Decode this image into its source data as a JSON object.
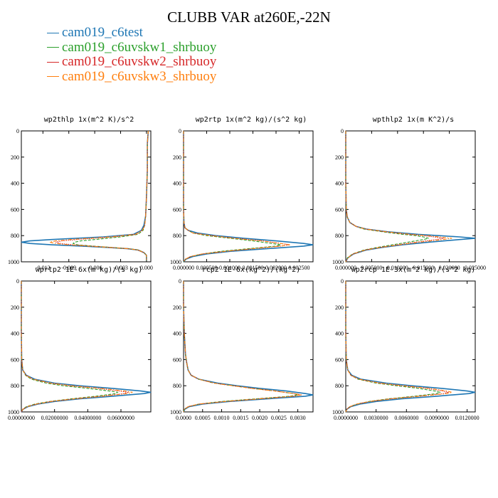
{
  "figure": {
    "title": "CLUBB VAR at260E,-22N"
  },
  "legend": [
    {
      "name": "cam019_c6test",
      "color": "#1f77b4",
      "dash": "solid"
    },
    {
      "name": "cam019_c6uvskw1_shrbuoy",
      "color": "#2ca02c",
      "dash": "dashed"
    },
    {
      "name": "cam019_c6uvskw2_shrbuoy",
      "color": "#d62728",
      "dash": "dotted"
    },
    {
      "name": "cam019_c6uvskw3_shrbuoy",
      "color": "#ff7f0e",
      "dash": "dashdot"
    }
  ],
  "chart_data": [
    {
      "type": "line",
      "title": "wp2thlp  1x(m^2 K)/s^2",
      "xlim": [
        -0.0145,
        0.0005
      ],
      "ylim": [
        1000,
        0
      ],
      "y_ticks": [
        0,
        200,
        400,
        600,
        800,
        1000
      ],
      "x_ticks": [
        -0.012,
        -0.009,
        -0.006,
        -0.003,
        0.0
      ],
      "x_tick_labels": [
        "-0.012",
        "-0.009",
        "-0.006",
        "-0.003",
        "0.000"
      ],
      "y": [
        0,
        100,
        300,
        500,
        650,
        720,
        760,
        790,
        810,
        830,
        840,
        850,
        860,
        870,
        880,
        890,
        900,
        910,
        930,
        950,
        970,
        990
      ],
      "series": [
        {
          "name": "cam019_c6test",
          "values": [
            0.0002,
            0.0001,
            0.0001,
            0.0,
            -0.0001,
            -0.0003,
            -0.0006,
            -0.0015,
            -0.005,
            -0.011,
            -0.0135,
            -0.0145,
            -0.0135,
            -0.011,
            -0.0075,
            -0.0045,
            -0.0022,
            -0.001,
            -0.0003,
            0.0,
            0.0,
            0.0
          ]
        },
        {
          "name": "cam019_c6uvskw1_shrbuoy",
          "values": [
            0.0002,
            0.0001,
            0.0001,
            0.0,
            -0.0001,
            -0.0002,
            -0.0004,
            -0.001,
            -0.003,
            -0.006,
            -0.0076,
            -0.0083,
            -0.0085,
            -0.008,
            -0.0062,
            -0.004,
            -0.002,
            -0.0009,
            -0.0003,
            0.0,
            0.0,
            0.0
          ]
        },
        {
          "name": "cam019_c6uvskw2_shrbuoy",
          "values": [
            0.0002,
            0.0001,
            0.0001,
            0.0,
            -0.0001,
            -0.0002,
            -0.0005,
            -0.0012,
            -0.0038,
            -0.008,
            -0.0098,
            -0.0105,
            -0.01,
            -0.0085,
            -0.0065,
            -0.0042,
            -0.0021,
            -0.001,
            -0.0003,
            0.0,
            0.0,
            0.0
          ]
        },
        {
          "name": "cam019_c6uvskw3_shrbuoy",
          "values": [
            0.0002,
            0.0001,
            0.0001,
            0.0,
            -0.0001,
            -0.0002,
            -0.0005,
            -0.0013,
            -0.0042,
            -0.0088,
            -0.0105,
            -0.0112,
            -0.0106,
            -0.009,
            -0.0068,
            -0.0043,
            -0.0021,
            -0.001,
            -0.0003,
            0.0,
            0.0,
            0.0
          ]
        }
      ]
    },
    {
      "type": "line",
      "title": "wp2rtp  1x(m^2 kg)/(s^2 kg)",
      "xlim": [
        0.0,
        0.0028
      ],
      "ylim": [
        1000,
        0
      ],
      "y_ticks": [
        0,
        200,
        400,
        600,
        800,
        1000
      ],
      "x_ticks": [
        0.0,
        0.0005,
        0.001,
        0.0015,
        0.002,
        0.0025
      ],
      "x_tick_labels": [
        "0.000000",
        "0.000500",
        "0.001000",
        "0.001500",
        "0.002000",
        "0.002500"
      ],
      "y": [
        0,
        300,
        600,
        700,
        740,
        760,
        780,
        800,
        820,
        840,
        860,
        870,
        880,
        900,
        920,
        940,
        960,
        980,
        1000
      ],
      "series": [
        {
          "name": "cam019_c6test",
          "values": [
            0.0,
            0.0,
            0.0,
            1e-05,
            3e-05,
            0.0001,
            0.0003,
            0.0007,
            0.0013,
            0.002,
            0.0026,
            0.0028,
            0.0026,
            0.0018,
            0.001,
            0.0005,
            0.0002,
            5e-05,
            0.0
          ]
        },
        {
          "name": "cam019_c6uvskw1_shrbuoy",
          "values": [
            0.0,
            0.0,
            0.0,
            1e-05,
            3e-05,
            0.0001,
            0.0002,
            0.0005,
            0.001,
            0.0015,
            0.0019,
            0.0021,
            0.002,
            0.0014,
            0.0008,
            0.0004,
            0.00015,
            4e-05,
            0.0
          ]
        },
        {
          "name": "cam019_c6uvskw2_shrbuoy",
          "values": [
            0.0,
            0.0,
            0.0,
            1e-05,
            3e-05,
            0.0001,
            0.0002,
            0.0006,
            0.0011,
            0.0017,
            0.0021,
            0.0023,
            0.0021,
            0.0015,
            0.0009,
            0.0004,
            0.00015,
            4e-05,
            0.0
          ]
        },
        {
          "name": "cam019_c6uvskw3_shrbuoy",
          "values": [
            0.0,
            0.0,
            0.0,
            1e-05,
            3e-05,
            0.0001,
            0.0002,
            0.0006,
            0.0011,
            0.0017,
            0.0021,
            0.0023,
            0.0021,
            0.0015,
            0.0009,
            0.0004,
            0.00015,
            4e-05,
            0.0
          ]
        }
      ]
    },
    {
      "type": "line",
      "title": "wpthlp2  1x(m K^2)/s",
      "xlim": [
        0.0,
        0.025
      ],
      "ylim": [
        1000,
        0
      ],
      "y_ticks": [
        0,
        200,
        400,
        600,
        800,
        1000
      ],
      "x_ticks": [
        0.0,
        0.005,
        0.01,
        0.015,
        0.02,
        0.025
      ],
      "x_tick_labels": [
        "0.000000",
        "0.005000",
        "0.010000",
        "0.015000",
        "0.020000",
        "0.025000"
      ],
      "y": [
        0,
        200,
        400,
        600,
        660,
        700,
        730,
        750,
        770,
        790,
        800,
        810,
        820,
        830,
        850,
        870,
        890,
        910,
        940,
        970,
        1000
      ],
      "series": [
        {
          "name": "cam019_c6test",
          "values": [
            0.0,
            0.0,
            0.0,
            0.0001,
            0.0003,
            0.0008,
            0.002,
            0.004,
            0.008,
            0.014,
            0.018,
            0.022,
            0.025,
            0.022,
            0.016,
            0.011,
            0.007,
            0.004,
            0.0015,
            0.0004,
            0.0
          ]
        },
        {
          "name": "cam019_c6uvskw1_shrbuoy",
          "values": [
            0.0,
            0.0,
            0.0,
            0.0001,
            0.0003,
            0.0008,
            0.002,
            0.0035,
            0.007,
            0.011,
            0.0135,
            0.015,
            0.016,
            0.015,
            0.012,
            0.009,
            0.006,
            0.0035,
            0.0013,
            0.0003,
            0.0
          ]
        },
        {
          "name": "cam019_c6uvskw2_shrbuoy",
          "values": [
            0.0,
            0.0,
            0.0,
            0.0001,
            0.0003,
            0.0008,
            0.002,
            0.0038,
            0.0075,
            0.012,
            0.015,
            0.017,
            0.019,
            0.0175,
            0.0135,
            0.01,
            0.0065,
            0.0037,
            0.0014,
            0.0004,
            0.0
          ]
        },
        {
          "name": "cam019_c6uvskw3_shrbuoy",
          "values": [
            0.0,
            0.0,
            0.0,
            0.0001,
            0.0003,
            0.0008,
            0.002,
            0.0039,
            0.0078,
            0.0125,
            0.0158,
            0.018,
            0.0205,
            0.0188,
            0.0142,
            0.0104,
            0.0067,
            0.0038,
            0.0014,
            0.0004,
            0.0
          ]
        }
      ]
    },
    {
      "type": "line",
      "title": "wprtp2  1E-6x(m kg)/(s kg)",
      "xlim": [
        0.0,
        0.078
      ],
      "ylim": [
        1000,
        0
      ],
      "y_ticks": [
        0,
        200,
        400,
        600,
        800,
        1000
      ],
      "x_ticks": [
        0.0,
        0.02,
        0.04,
        0.06
      ],
      "x_tick_labels": [
        "0.00000000",
        "0.02000000",
        "0.04000000",
        "0.06000000"
      ],
      "y": [
        0,
        200,
        400,
        600,
        680,
        720,
        750,
        780,
        800,
        820,
        840,
        850,
        860,
        880,
        900,
        920,
        940,
        960,
        980,
        1000
      ],
      "series": [
        {
          "name": "cam019_c6test",
          "values": [
            0.0,
            0.0,
            0.0,
            0.0002,
            0.0008,
            0.003,
            0.008,
            0.02,
            0.035,
            0.055,
            0.072,
            0.078,
            0.074,
            0.055,
            0.035,
            0.02,
            0.01,
            0.004,
            0.001,
            0.0
          ]
        },
        {
          "name": "cam019_c6uvskw1_shrbuoy",
          "values": [
            0.0,
            0.0,
            0.0,
            0.0002,
            0.0008,
            0.0025,
            0.006,
            0.015,
            0.025,
            0.04,
            0.053,
            0.058,
            0.057,
            0.045,
            0.03,
            0.017,
            0.008,
            0.003,
            0.0008,
            0.0
          ]
        },
        {
          "name": "cam019_c6uvskw2_shrbuoy",
          "values": [
            0.0,
            0.0,
            0.0,
            0.0002,
            0.0008,
            0.0028,
            0.007,
            0.017,
            0.029,
            0.046,
            0.059,
            0.064,
            0.062,
            0.048,
            0.032,
            0.018,
            0.009,
            0.0035,
            0.0009,
            0.0
          ]
        },
        {
          "name": "cam019_c6uvskw3_shrbuoy",
          "values": [
            0.0,
            0.0,
            0.0,
            0.0002,
            0.0008,
            0.0028,
            0.007,
            0.018,
            0.03,
            0.048,
            0.062,
            0.067,
            0.064,
            0.049,
            0.032,
            0.018,
            0.009,
            0.0035,
            0.0009,
            0.0
          ]
        }
      ]
    },
    {
      "type": "line",
      "title": "rcp2  1E-6x(kg^2)/(kg^2)",
      "xlim": [
        0.0,
        0.0034
      ],
      "ylim": [
        1000,
        0
      ],
      "y_ticks": [
        0,
        200,
        400,
        600,
        800,
        1000
      ],
      "x_ticks": [
        0.0,
        0.0005,
        0.001,
        0.0015,
        0.002,
        0.0025,
        0.003
      ],
      "x_tick_labels": [
        "0.0000",
        "0.0005",
        "0.0010",
        "0.0015",
        "0.0020",
        "0.0025",
        "0.0030"
      ],
      "y": [
        0,
        200,
        400,
        560,
        620,
        680,
        720,
        750,
        780,
        800,
        820,
        840,
        860,
        870,
        880,
        900,
        920,
        940,
        960,
        980,
        1000
      ],
      "series": [
        {
          "name": "cam019_c6test",
          "values": [
            0.0,
            0.0,
            2e-05,
            5e-05,
            8e-05,
            0.00012,
            0.0002,
            0.0004,
            0.0009,
            0.0014,
            0.002,
            0.0027,
            0.0032,
            0.0034,
            0.0032,
            0.0022,
            0.0012,
            0.0005,
            0.00015,
            3e-05,
            0.0
          ]
        },
        {
          "name": "cam019_c6uvskw1_shrbuoy",
          "values": [
            0.0,
            0.0,
            2e-05,
            5e-05,
            8e-05,
            0.00012,
            0.0002,
            0.0004,
            0.0008,
            0.0013,
            0.0018,
            0.0024,
            0.0029,
            0.003,
            0.0028,
            0.0019,
            0.001,
            0.0004,
            0.00012,
            2e-05,
            0.0
          ]
        },
        {
          "name": "cam019_c6uvskw2_shrbuoy",
          "values": [
            0.0,
            0.0,
            2e-05,
            5e-05,
            8e-05,
            0.00012,
            0.0002,
            0.0004,
            0.0008,
            0.0013,
            0.0018,
            0.0024,
            0.0029,
            0.0031,
            0.0029,
            0.002,
            0.0011,
            0.0004,
            0.00012,
            2e-05,
            0.0
          ]
        },
        {
          "name": "cam019_c6uvskw3_shrbuoy",
          "values": [
            0.0,
            0.0,
            2e-05,
            5e-05,
            8e-05,
            0.00012,
            0.0002,
            0.0004,
            0.0008,
            0.0013,
            0.0018,
            0.0024,
            0.0029,
            0.0031,
            0.0029,
            0.002,
            0.0011,
            0.0004,
            0.00012,
            2e-05,
            0.0
          ]
        }
      ]
    },
    {
      "type": "line",
      "title": "wp2rcp  1E-3x(m^2 kg)/(s^2 kg)",
      "xlim": [
        0.0,
        0.0128
      ],
      "ylim": [
        1000,
        0
      ],
      "y_ticks": [
        0,
        200,
        400,
        600,
        800,
        1000
      ],
      "x_ticks": [
        0.0,
        0.003,
        0.006,
        0.009,
        0.012
      ],
      "x_tick_labels": [
        "0.0000000",
        "0.0030000",
        "0.0060000",
        "0.0090000",
        "0.0120000"
      ],
      "y": [
        0,
        200,
        400,
        600,
        680,
        720,
        750,
        780,
        800,
        820,
        840,
        850,
        860,
        880,
        900,
        920,
        940,
        960,
        980,
        1000
      ],
      "series": [
        {
          "name": "cam019_c6test",
          "values": [
            0.0,
            0.0,
            0.0,
            5e-05,
            0.0002,
            0.0006,
            0.0015,
            0.004,
            0.0065,
            0.0095,
            0.012,
            0.0128,
            0.0122,
            0.009,
            0.0055,
            0.003,
            0.0014,
            0.0005,
            0.0001,
            0.0
          ]
        },
        {
          "name": "cam019_c6uvskw1_shrbuoy",
          "values": [
            0.0,
            0.0,
            0.0,
            5e-05,
            0.0002,
            0.0005,
            0.0012,
            0.003,
            0.005,
            0.0072,
            0.0088,
            0.0093,
            0.009,
            0.0068,
            0.0042,
            0.0023,
            0.0011,
            0.0004,
            0.0001,
            0.0
          ]
        },
        {
          "name": "cam019_c6uvskw2_shrbuoy",
          "values": [
            0.0,
            0.0,
            0.0,
            5e-05,
            0.0002,
            0.0005,
            0.0013,
            0.0033,
            0.0055,
            0.008,
            0.0096,
            0.0101,
            0.0097,
            0.0072,
            0.0044,
            0.0024,
            0.0011,
            0.0004,
            0.0001,
            0.0
          ]
        },
        {
          "name": "cam019_c6uvskw3_shrbuoy",
          "values": [
            0.0,
            0.0,
            0.0,
            5e-05,
            0.0002,
            0.0005,
            0.0013,
            0.0034,
            0.0057,
            0.0083,
            0.01,
            0.0105,
            0.01,
            0.0074,
            0.0045,
            0.0024,
            0.0011,
            0.0004,
            0.0001,
            0.0
          ]
        }
      ]
    }
  ]
}
